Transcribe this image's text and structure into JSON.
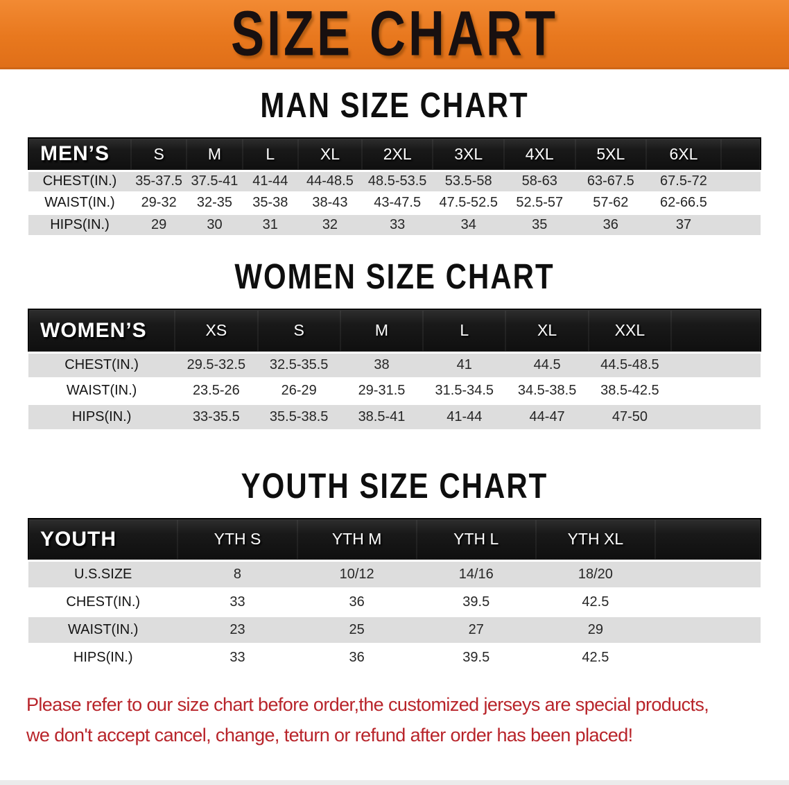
{
  "banner": {
    "title": "SIZE CHART"
  },
  "sections": [
    {
      "heading": "MAN SIZE CHART",
      "table": {
        "header_label": "MEN’S",
        "columns": [
          "S",
          "M",
          "L",
          "XL",
          "2XL",
          "3XL",
          "4XL",
          "5XL",
          "6XL"
        ],
        "rows": [
          {
            "label": "CHEST(IN.)",
            "values": [
              "35-37.5",
              "37.5-41",
              "41-44",
              "44-48.5",
              "48.5-53.5",
              "53.5-58",
              "58-63",
              "63-67.5",
              "67.5-72"
            ]
          },
          {
            "label": "WAIST(IN.)",
            "values": [
              "29-32",
              "32-35",
              "35-38",
              "38-43",
              "43-47.5",
              "47.5-52.5",
              "52.5-57",
              "57-62",
              "62-66.5"
            ]
          },
          {
            "label": "HIPS(IN.)",
            "values": [
              "29",
              "30",
              "31",
              "32",
              "33",
              "34",
              "35",
              "36",
              "37"
            ]
          }
        ]
      }
    },
    {
      "heading": "WOMEN SIZE CHART",
      "table": {
        "header_label": "WOMEN’S",
        "columns": [
          "XS",
          "S",
          "M",
          "L",
          "XL",
          "XXL"
        ],
        "rows": [
          {
            "label": "CHEST(IN.)",
            "values": [
              "29.5-32.5",
              "32.5-35.5",
              "38",
              "41",
              "44.5",
              "44.5-48.5"
            ]
          },
          {
            "label": "WAIST(IN.)",
            "values": [
              "23.5-26",
              "26-29",
              "29-31.5",
              "31.5-34.5",
              "34.5-38.5",
              "38.5-42.5"
            ]
          },
          {
            "label": "HIPS(IN.)",
            "values": [
              "33-35.5",
              "35.5-38.5",
              "38.5-41",
              "41-44",
              "44-47",
              "47-50"
            ]
          }
        ]
      }
    },
    {
      "heading": "YOUTH SIZE CHART",
      "table": {
        "header_label": "YOUTH",
        "columns": [
          "YTH S",
          "YTH M",
          "YTH L",
          "YTH XL"
        ],
        "rows": [
          {
            "label": "U.S.SIZE",
            "values": [
              "8",
              "10/12",
              "14/16",
              "18/20"
            ]
          },
          {
            "label": "CHEST(IN.)",
            "values": [
              "33",
              "36",
              "39.5",
              "42.5"
            ]
          },
          {
            "label": "WAIST(IN.)",
            "values": [
              "23",
              "25",
              "27",
              "29"
            ]
          },
          {
            "label": "HIPS(IN.)",
            "values": [
              "33",
              "36",
              "39.5",
              "42.5"
            ]
          }
        ]
      }
    }
  ],
  "footer": {
    "line1": "Please refer to our size chart before order,the customized jerseys are special products,",
    "line2": "we don't accept cancel, change, teturn or refund after order has been placed!"
  },
  "colors": {
    "banner_orange": "#E8781E",
    "banner_orange_dark": "#CF6717",
    "bar_black": "#161616",
    "row_gray": "#DDDDDD",
    "footer_red": "#B8242A",
    "data_text": "#262626"
  }
}
